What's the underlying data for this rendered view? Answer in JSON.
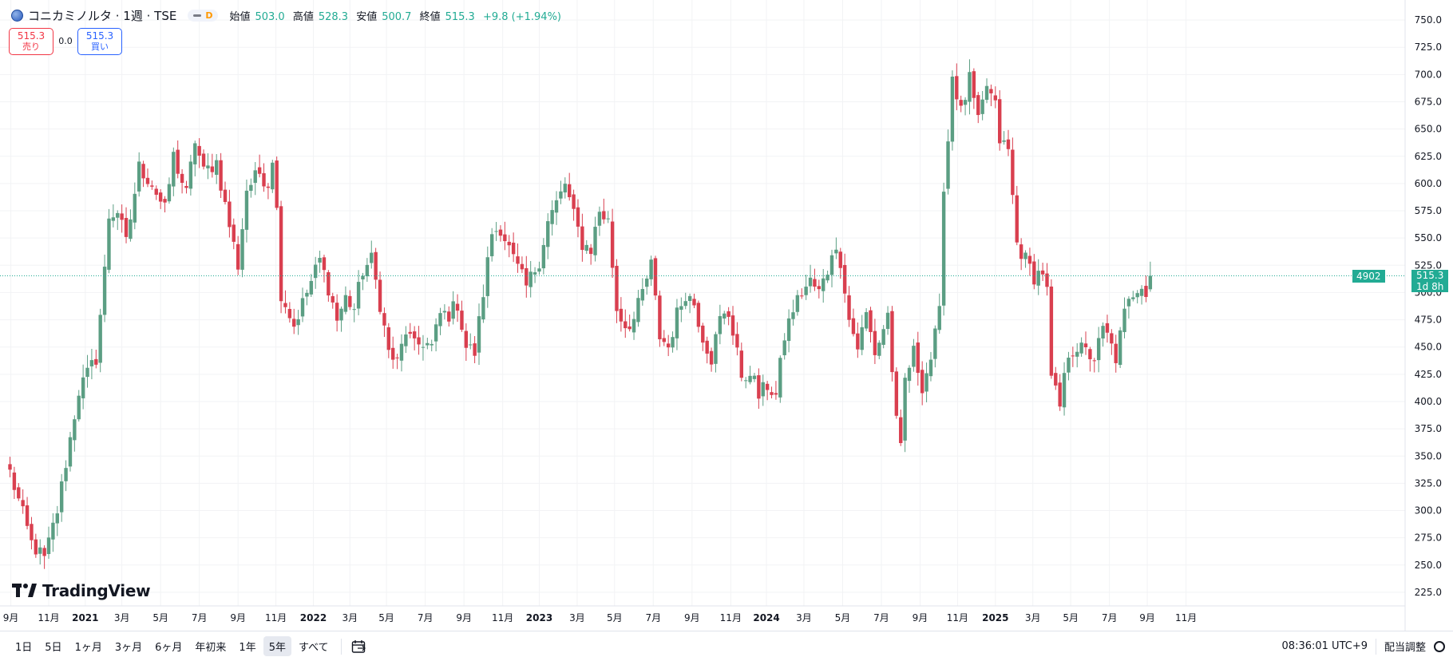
{
  "header": {
    "symbol": "コニカミノルタ · 1週 · TSE",
    "interval_badge": "D",
    "ohlc": [
      {
        "label": "始値",
        "value": "503.0"
      },
      {
        "label": "高値",
        "value": "528.3"
      },
      {
        "label": "安値",
        "value": "500.7"
      },
      {
        "label": "終値",
        "value": "515.3"
      },
      {
        "label": "",
        "value": "+9.8 (+1.94%)"
      }
    ]
  },
  "trade": {
    "sell_price": "515.3",
    "sell_label": "売り",
    "spread": "0.0",
    "buy_price": "515.3",
    "buy_label": "買い"
  },
  "logo_text": "TradingView",
  "price_label": {
    "volume": "4902",
    "price": "515.3",
    "countdown": "1d 8h"
  },
  "timeframes": [
    "1日",
    "5日",
    "1ヶ月",
    "3ヶ月",
    "6ヶ月",
    "年初来",
    "1年",
    "5年",
    "すべて"
  ],
  "active_timeframe": "5年",
  "clock": "08:36:01 UTC+9",
  "adjust_label": "配当調整",
  "colors": {
    "up": "#5b9e83",
    "down": "#d93f4f",
    "grid": "#f2f3f5"
  },
  "chart_data": {
    "type": "candlestick",
    "title": "",
    "ylim": [
      212.5,
      762.5
    ],
    "y_ticks": [
      225,
      250,
      275,
      300,
      325,
      350,
      375,
      400,
      425,
      450,
      475,
      500,
      525,
      550,
      575,
      600,
      625,
      650,
      675,
      700,
      725,
      750
    ],
    "x_ticks": [
      {
        "label": "9月",
        "t": 0.2
      },
      {
        "label": "11月",
        "t": 9
      },
      {
        "label": "2021",
        "t": 17.5
      },
      {
        "label": "3月",
        "t": 26
      },
      {
        "label": "5月",
        "t": 35
      },
      {
        "label": "7月",
        "t": 44
      },
      {
        "label": "9月",
        "t": 53
      },
      {
        "label": "11月",
        "t": 61.8
      },
      {
        "label": "2022",
        "t": 70.5
      },
      {
        "label": "3月",
        "t": 79
      },
      {
        "label": "5月",
        "t": 87.5
      },
      {
        "label": "7月",
        "t": 96.5
      },
      {
        "label": "9月",
        "t": 105.5
      },
      {
        "label": "11月",
        "t": 114.5
      },
      {
        "label": "2023",
        "t": 123
      },
      {
        "label": "3月",
        "t": 131.8
      },
      {
        "label": "5月",
        "t": 140.5
      },
      {
        "label": "7月",
        "t": 149.5
      },
      {
        "label": "9月",
        "t": 158.5
      },
      {
        "label": "11月",
        "t": 167.5
      },
      {
        "label": "2024",
        "t": 175.8
      },
      {
        "label": "3月",
        "t": 184.5
      },
      {
        "label": "5月",
        "t": 193.5
      },
      {
        "label": "7月",
        "t": 202.5
      },
      {
        "label": "9月",
        "t": 211.5
      },
      {
        "label": "11月",
        "t": 220.2
      },
      {
        "label": "2025",
        "t": 229
      },
      {
        "label": "3月",
        "t": 237.7
      },
      {
        "label": "5月",
        "t": 246.5
      },
      {
        "label": "7月",
        "t": 255.5
      },
      {
        "label": "9月",
        "t": 264.3
      },
      {
        "label": "11月",
        "t": 273.3
      }
    ],
    "last_price": 515.3,
    "close_anchors": [
      [
        0,
        335
      ],
      [
        5,
        270
      ],
      [
        8,
        255
      ],
      [
        11,
        300
      ],
      [
        16,
        410
      ],
      [
        20,
        440
      ],
      [
        22,
        520
      ],
      [
        23,
        570
      ],
      [
        25,
        575
      ],
      [
        27,
        545
      ],
      [
        30,
        615
      ],
      [
        33,
        600
      ],
      [
        36,
        575
      ],
      [
        38,
        625
      ],
      [
        41,
        590
      ],
      [
        43,
        640
      ],
      [
        45,
        610
      ],
      [
        48,
        620
      ],
      [
        50,
        580
      ],
      [
        53,
        525
      ],
      [
        55,
        595
      ],
      [
        58,
        610
      ],
      [
        60,
        600
      ],
      [
        61,
        625
      ],
      [
        62,
        575
      ],
      [
        63,
        500
      ],
      [
        66,
        470
      ],
      [
        69,
        500
      ],
      [
        71,
        520
      ],
      [
        72,
        530
      ],
      [
        74,
        505
      ],
      [
        76,
        475
      ],
      [
        78,
        495
      ],
      [
        80,
        485
      ],
      [
        82,
        520
      ],
      [
        84,
        530
      ],
      [
        86,
        490
      ],
      [
        88,
        445
      ],
      [
        90,
        435
      ],
      [
        92,
        465
      ],
      [
        94,
        450
      ],
      [
        96,
        455
      ],
      [
        98,
        450
      ],
      [
        100,
        480
      ],
      [
        102,
        480
      ],
      [
        104,
        490
      ],
      [
        106,
        450
      ],
      [
        108,
        445
      ],
      [
        110,
        500
      ],
      [
        112,
        555
      ],
      [
        114,
        560
      ],
      [
        117,
        530
      ],
      [
        120,
        505
      ],
      [
        123,
        530
      ],
      [
        125,
        565
      ],
      [
        128,
        590
      ],
      [
        129,
        600
      ],
      [
        130,
        585
      ],
      [
        131,
        570
      ],
      [
        133,
        545
      ],
      [
        135,
        540
      ],
      [
        137,
        575
      ],
      [
        139,
        565
      ],
      [
        141,
        485
      ],
      [
        143,
        470
      ],
      [
        145,
        475
      ],
      [
        147,
        500
      ],
      [
        149,
        525
      ],
      [
        151,
        460
      ],
      [
        153,
        450
      ],
      [
        155,
        480
      ],
      [
        157,
        500
      ],
      [
        159,
        490
      ],
      [
        161,
        460
      ],
      [
        163,
        440
      ],
      [
        165,
        475
      ],
      [
        167,
        480
      ],
      [
        169,
        450
      ],
      [
        170,
        415
      ],
      [
        172,
        430
      ],
      [
        174,
        405
      ],
      [
        176,
        415
      ],
      [
        178,
        405
      ],
      [
        180,
        460
      ],
      [
        182,
        485
      ],
      [
        184,
        500
      ],
      [
        186,
        510
      ],
      [
        188,
        500
      ],
      [
        190,
        520
      ],
      [
        191,
        540
      ],
      [
        193,
        530
      ],
      [
        194,
        505
      ],
      [
        195,
        475
      ],
      [
        197,
        450
      ],
      [
        199,
        480
      ],
      [
        201,
        445
      ],
      [
        202,
        455
      ],
      [
        204,
        480
      ],
      [
        206,
        380
      ],
      [
        207,
        355
      ],
      [
        208,
        420
      ],
      [
        210,
        445
      ],
      [
        212,
        415
      ],
      [
        214,
        440
      ],
      [
        216,
        480
      ],
      [
        217,
        600
      ],
      [
        218,
        640
      ],
      [
        219,
        700
      ],
      [
        221,
        665
      ],
      [
        223,
        695
      ],
      [
        225,
        655
      ],
      [
        227,
        690
      ],
      [
        229,
        670
      ],
      [
        230,
        640
      ],
      [
        232,
        630
      ],
      [
        234,
        545
      ],
      [
        236,
        530
      ],
      [
        238,
        515
      ],
      [
        240,
        520
      ],
      [
        241,
        500
      ],
      [
        242,
        420
      ],
      [
        244,
        395
      ],
      [
        246,
        445
      ],
      [
        248,
        450
      ],
      [
        250,
        445
      ],
      [
        252,
        440
      ],
      [
        254,
        465
      ],
      [
        255,
        460
      ],
      [
        257,
        440
      ],
      [
        259,
        480
      ],
      [
        261,
        500
      ],
      [
        263,
        510
      ],
      [
        264,
        500
      ],
      [
        265,
        515.3
      ]
    ],
    "num_candles": 266,
    "x0": 12.5,
    "dx": 5.39
  }
}
